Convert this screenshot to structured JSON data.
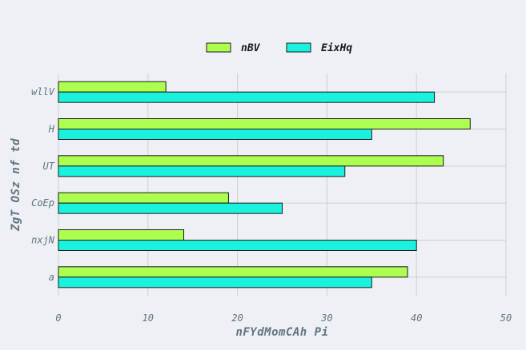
{
  "chart_data": {
    "type": "bar",
    "orientation": "horizontal",
    "title": "",
    "xlabel": "nFYdMomCAh Pi",
    "ylabel": "ZgT OSz nf td",
    "categories": [
      "a",
      "nxjN",
      "CoEp",
      "UT",
      "H",
      "wllV"
    ],
    "series": [
      {
        "name": "nBV",
        "color": "#adff4f",
        "values": [
          39,
          14,
          19,
          43,
          46,
          12
        ]
      },
      {
        "name": "EixHq",
        "color": "#1af2de",
        "values": [
          35,
          40,
          25,
          32,
          35,
          42
        ]
      }
    ],
    "xlim": [
      0,
      50
    ],
    "xticks": [
      0,
      10,
      20,
      30,
      40,
      50
    ],
    "grid": true,
    "legend_position": "top-center"
  }
}
